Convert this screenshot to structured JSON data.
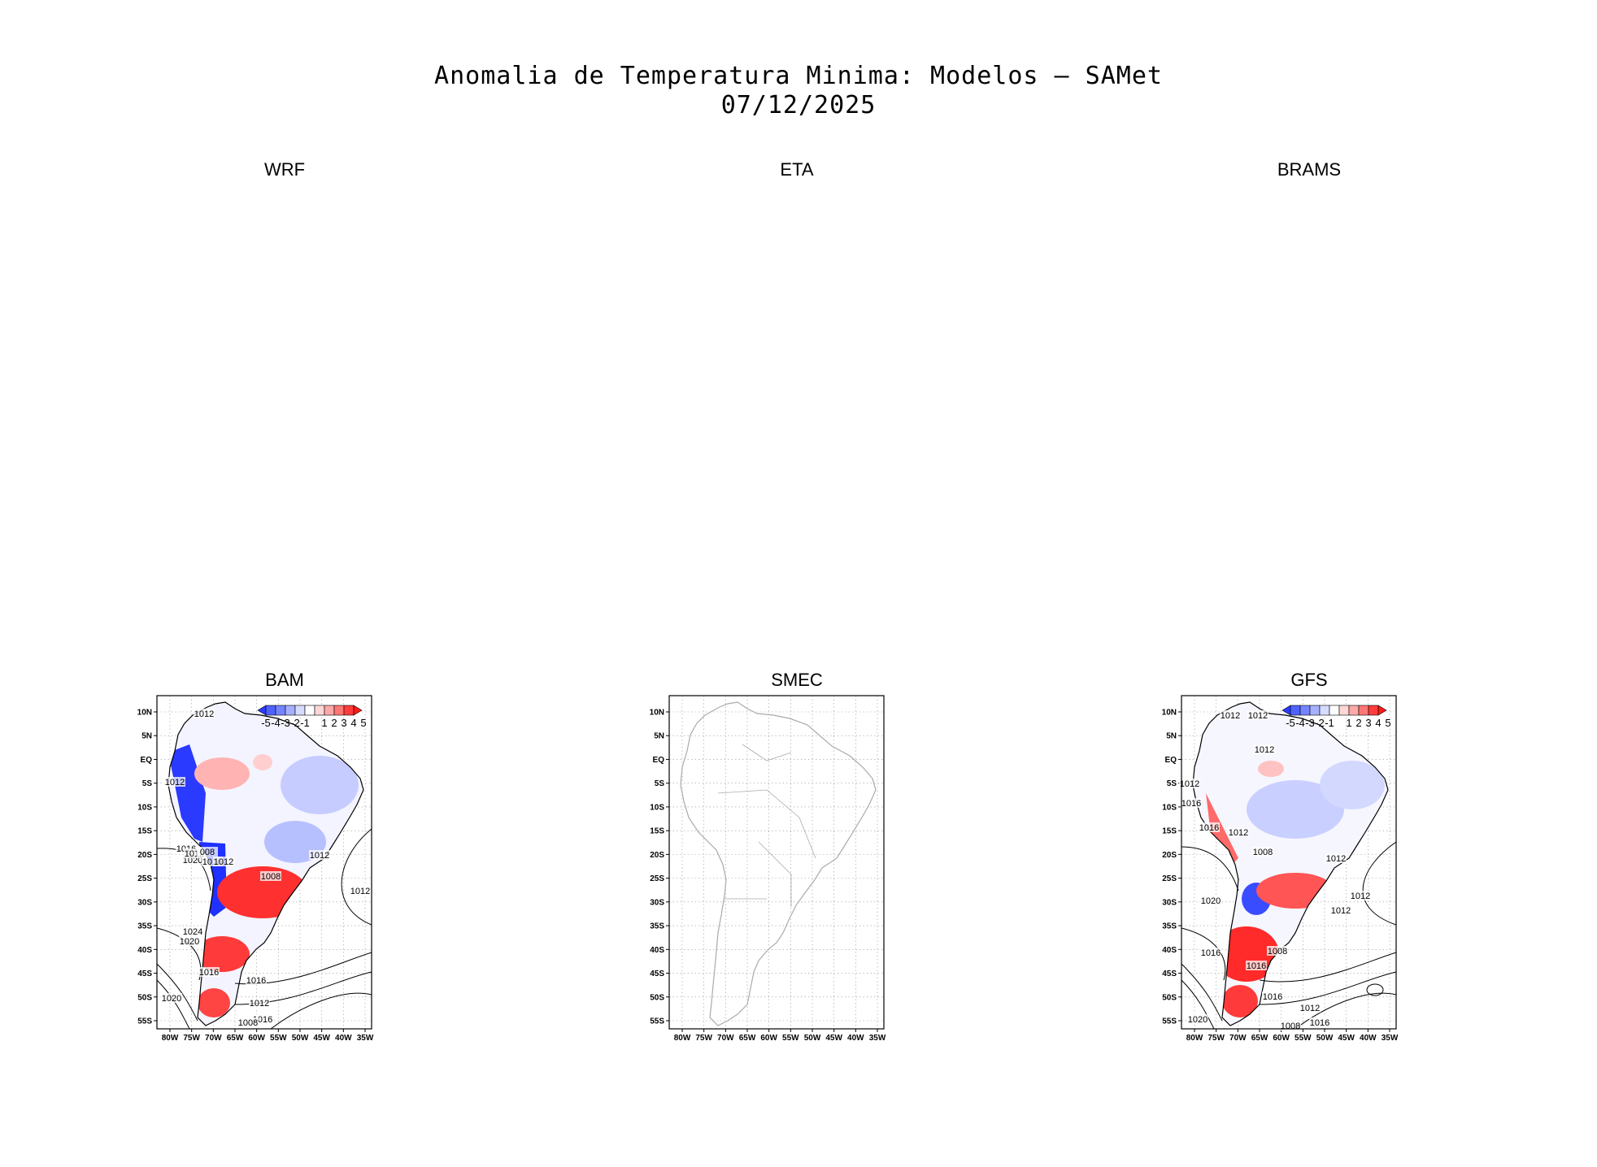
{
  "figure": {
    "title_line1": "Anomalia de Temperatura Minima: Modelos — SAMet",
    "title_line2": "07/12/2025"
  },
  "panels": {
    "wrf": {
      "label": "WRF"
    },
    "eta": {
      "label": "ETA"
    },
    "brams": {
      "label": "BRAMS"
    },
    "bam": {
      "label": "BAM"
    },
    "smec": {
      "label": "SMEC"
    },
    "gfs": {
      "label": "GFS"
    }
  },
  "axes": {
    "lat_ticks": [
      "10N",
      "5N",
      "EQ",
      "5S",
      "10S",
      "15S",
      "20S",
      "25S",
      "30S",
      "35S",
      "40S",
      "45S",
      "50S",
      "55S"
    ],
    "lon_ticks": [
      "80W",
      "75W",
      "70W",
      "65W",
      "60W",
      "55W",
      "50W",
      "45W",
      "40W",
      "35W"
    ]
  },
  "colorbar": {
    "labels": [
      "-5",
      "-4",
      "-3",
      "-2",
      "-1",
      "1",
      "2",
      "3",
      "4",
      "5"
    ],
    "colors": [
      "#2b3bff",
      "#4f62ff",
      "#7585ff",
      "#a6b0ff",
      "#d6dcff",
      "#ffffff",
      "#ffd6d6",
      "#ffa8a8",
      "#ff7676",
      "#ff3c3c",
      "#ff1a1a"
    ]
  },
  "isobars": {
    "bam": [
      "1012",
      "1012",
      "1012",
      "1016",
      "1020",
      "1012",
      "008",
      "1016",
      "1012",
      "1008",
      "1012",
      "1016",
      "1024",
      "1020",
      "1016",
      "1016",
      "1020",
      "1012",
      "1008"
    ],
    "gfs": [
      "1012",
      "1012",
      "1012",
      "1012",
      "1016",
      "1016",
      "1012",
      "1008",
      "1012",
      "1012",
      "1016",
      "1008",
      "1012",
      "1016",
      "1020",
      "1016",
      "1016",
      "1020",
      "1012",
      "1008"
    ]
  },
  "colors": {
    "warm": "#ff2a2a",
    "cold": "#1f35ff",
    "land_outline": "#aaaaaa",
    "grid": "#999999"
  }
}
